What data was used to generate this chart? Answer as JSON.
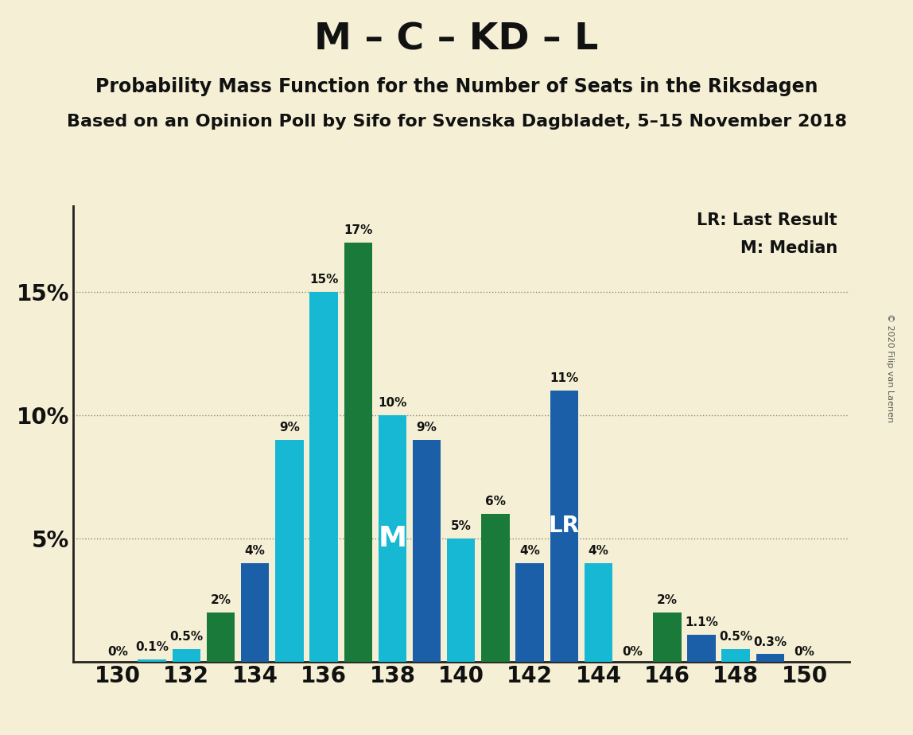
{
  "title": "M – C – KD – L",
  "subtitle1": "Probability Mass Function for the Number of Seats in the Riksdagen",
  "subtitle2": "Based on an Opinion Poll by Sifo for Svenska Dagbladet, 5–15 November 2018",
  "copyright": "© 2020 Filip van Laenen",
  "legend_lr": "LR: Last Result",
  "legend_m": "M: Median",
  "background_color": "#f5f0d5",
  "median_seat": 138,
  "last_result_seat": 143,
  "seats": [
    130,
    131,
    132,
    133,
    134,
    135,
    136,
    137,
    138,
    139,
    140,
    141,
    142,
    143,
    144,
    145,
    146,
    147,
    148,
    149,
    150
  ],
  "probabilities": [
    0.0,
    0.1,
    0.5,
    2.0,
    4.0,
    9.0,
    15.0,
    17.0,
    10.0,
    9.0,
    5.0,
    6.0,
    4.0,
    11.0,
    4.0,
    0.0,
    2.0,
    1.1,
    0.5,
    0.3,
    0.0
  ],
  "colors": [
    "#1a5fa8",
    "#17b8d4",
    "#17b8d4",
    "#1a7a3a",
    "#1a5fa8",
    "#17b8d4",
    "#17b8d4",
    "#1a7a3a",
    "#17b8d4",
    "#1a5fa8",
    "#17b8d4",
    "#1a7a3a",
    "#1a5fa8",
    "#1a5fa8",
    "#17b8d4",
    "#17b8d4",
    "#1a7a3a",
    "#1a5fa8",
    "#17b8d4",
    "#1a5fa8",
    "#17b8d4"
  ],
  "bar_labels": [
    "0%",
    "0.1%",
    "0.5%",
    "2%",
    "4%",
    "9%",
    "15%",
    "17%",
    "10%",
    "9%",
    "5%",
    "6%",
    "4%",
    "11%",
    "4%",
    "0%",
    "2%",
    "1.1%",
    "0.5%",
    "0.3%",
    "0%"
  ],
  "show_label": [
    true,
    true,
    true,
    true,
    true,
    true,
    true,
    true,
    true,
    true,
    true,
    true,
    true,
    true,
    true,
    true,
    true,
    true,
    true,
    true,
    true
  ],
  "ylim": [
    0,
    18.5
  ],
  "ytick_vals": [
    5,
    10,
    15
  ],
  "ytick_labels": [
    "5%",
    "10%",
    "15%"
  ],
  "xticks": [
    130,
    132,
    134,
    136,
    138,
    140,
    142,
    144,
    146,
    148,
    150
  ],
  "grid_every": 1,
  "bar_width": 0.82,
  "label_fontsize": 11,
  "title_fontsize": 34,
  "subtitle1_fontsize": 17,
  "subtitle2_fontsize": 16,
  "tick_fontsize": 20,
  "legend_fontsize": 15,
  "median_label_fontsize": 26,
  "lr_label_fontsize": 20
}
